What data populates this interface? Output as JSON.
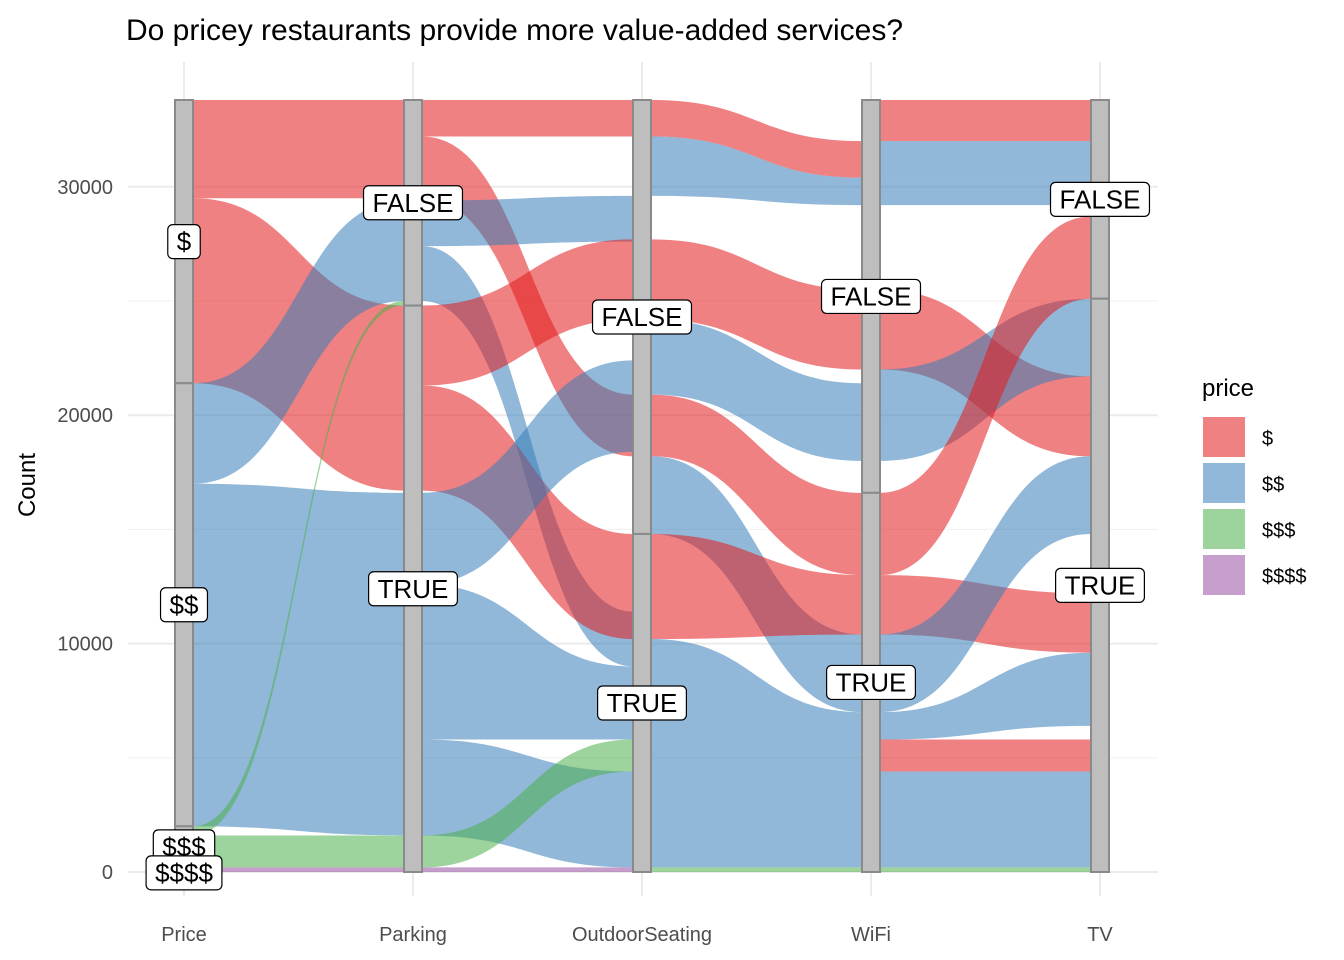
{
  "chart_data": {
    "type": "alluvial",
    "title": "Do pricey restaurants provide more value-added services?",
    "xlabel": "",
    "ylabel": "Count",
    "ylim": [
      0,
      33800
    ],
    "y_ticks": [
      0,
      10000,
      20000,
      30000
    ],
    "axes": [
      "Price",
      "Parking",
      "OutdoorSeating",
      "WiFi",
      "TV"
    ],
    "legend": {
      "title": "price",
      "position": "right",
      "entries": [
        {
          "label": "$",
          "color": "#E41A1C"
        },
        {
          "label": "$$",
          "color": "#377EB8"
        },
        {
          "label": "$$$",
          "color": "#4DAF4A"
        },
        {
          "label": "$$$$",
          "color": "#984EA3"
        }
      ]
    },
    "strata": [
      {
        "axis": "Price",
        "label": "$",
        "from": 21400,
        "to": 33800
      },
      {
        "axis": "Price",
        "label": "$$",
        "from": 2000,
        "to": 21400
      },
      {
        "axis": "Price",
        "label": "$$$",
        "from": 200,
        "to": 2000
      },
      {
        "axis": "Price",
        "label": "$$$$",
        "from": 0,
        "to": 200
      },
      {
        "axis": "Parking",
        "label": "FALSE",
        "from": 24800,
        "to": 33800
      },
      {
        "axis": "Parking",
        "label": "TRUE",
        "from": 0,
        "to": 24800
      },
      {
        "axis": "OutdoorSeating",
        "label": "FALSE",
        "from": 14800,
        "to": 33800
      },
      {
        "axis": "OutdoorSeating",
        "label": "TRUE",
        "from": 0,
        "to": 14800
      },
      {
        "axis": "WiFi",
        "label": "FALSE",
        "from": 16600,
        "to": 33800
      },
      {
        "axis": "WiFi",
        "label": "TRUE",
        "from": 0,
        "to": 16600
      },
      {
        "axis": "TV",
        "label": "FALSE",
        "from": 25100,
        "to": 33800
      },
      {
        "axis": "TV",
        "label": "TRUE",
        "from": 0,
        "to": 25100
      }
    ],
    "flows": [
      {
        "price": "$",
        "from_axis": "Price",
        "to_axis": "Parking",
        "from": [
          29500,
          33800
        ],
        "to": [
          29500,
          33800
        ]
      },
      {
        "price": "$",
        "from_axis": "Price",
        "to_axis": "Parking",
        "from": [
          21400,
          29500
        ],
        "to": [
          16700,
          24800
        ]
      },
      {
        "price": "$$",
        "from_axis": "Price",
        "to_axis": "Parking",
        "from": [
          17000,
          21400
        ],
        "to": [
          25000,
          29400
        ]
      },
      {
        "price": "$$",
        "from_axis": "Price",
        "to_axis": "Parking",
        "from": [
          2000,
          17000
        ],
        "to": [
          1600,
          16600
        ]
      },
      {
        "price": "$$$",
        "from_axis": "Price",
        "to_axis": "Parking",
        "from": [
          1600,
          2000
        ],
        "to": [
          24800,
          25000
        ]
      },
      {
        "price": "$$$",
        "from_axis": "Price",
        "to_axis": "Parking",
        "from": [
          200,
          1600
        ],
        "to": [
          200,
          1600
        ]
      },
      {
        "price": "$$$$",
        "from_axis": "Price",
        "to_axis": "Parking",
        "from": [
          0,
          200
        ],
        "to": [
          0,
          200
        ]
      },
      {
        "price": "$",
        "from_axis": "Parking",
        "to_axis": "OutdoorSeating",
        "from": [
          32200,
          33800
        ],
        "to": [
          32200,
          33800
        ]
      },
      {
        "price": "$",
        "from_axis": "Parking",
        "to_axis": "OutdoorSeating",
        "from": [
          29500,
          32200
        ],
        "to": [
          18200,
          20900
        ]
      },
      {
        "price": "$$",
        "from_axis": "Parking",
        "to_axis": "OutdoorSeating",
        "from": [
          27400,
          29400
        ],
        "to": [
          27600,
          29600
        ]
      },
      {
        "price": "$$",
        "from_axis": "Parking",
        "to_axis": "OutdoorSeating",
        "from": [
          25000,
          27400
        ],
        "to": [
          9000,
          11400
        ]
      },
      {
        "price": "$",
        "from_axis": "Parking",
        "to_axis": "OutdoorSeating",
        "from": [
          21300,
          24800
        ],
        "to": [
          24200,
          27700
        ]
      },
      {
        "price": "$",
        "from_axis": "Parking",
        "to_axis": "OutdoorSeating",
        "from": [
          16700,
          21300
        ],
        "to": [
          10200,
          14800
        ]
      },
      {
        "price": "$$",
        "from_axis": "Parking",
        "to_axis": "OutdoorSeating",
        "from": [
          12600,
          16600
        ],
        "to": [
          18400,
          22400
        ]
      },
      {
        "price": "$$",
        "from_axis": "Parking",
        "to_axis": "OutdoorSeating",
        "from": [
          5800,
          12600
        ],
        "to": [
          5800,
          9000
        ]
      },
      {
        "price": "$$",
        "from_axis": "Parking",
        "to_axis": "OutdoorSeating",
        "from": [
          1600,
          5800
        ],
        "to": [
          200,
          4400
        ]
      },
      {
        "price": "$$$",
        "from_axis": "Parking",
        "to_axis": "OutdoorSeating",
        "from": [
          200,
          1600
        ],
        "to": [
          4400,
          5800
        ]
      },
      {
        "price": "$$$$",
        "from_axis": "Parking",
        "to_axis": "OutdoorSeating",
        "from": [
          0,
          200
        ],
        "to": [
          0,
          200
        ]
      },
      {
        "price": "$",
        "from_axis": "OutdoorSeating",
        "to_axis": "WiFi",
        "from": [
          32200,
          33800
        ],
        "to": [
          30400,
          32000
        ]
      },
      {
        "price": "$$",
        "from_axis": "OutdoorSeating",
        "to_axis": "WiFi",
        "from": [
          29600,
          32200
        ],
        "to": [
          29200,
          30400
        ]
      },
      {
        "price": "$",
        "from_axis": "OutdoorSeating",
        "to_axis": "WiFi",
        "from": [
          24200,
          27700
        ],
        "to": [
          22000,
          25500
        ]
      },
      {
        "price": "$$",
        "from_axis": "OutdoorSeating",
        "to_axis": "WiFi",
        "from": [
          20900,
          24200
        ],
        "to": [
          18000,
          21400
        ]
      },
      {
        "price": "$",
        "from_axis": "OutdoorSeating",
        "to_axis": "WiFi",
        "from": [
          18200,
          20900
        ],
        "to": [
          13000,
          16600
        ]
      },
      {
        "price": "$$",
        "from_axis": "OutdoorSeating",
        "to_axis": "WiFi",
        "from": [
          14800,
          18200
        ],
        "to": [
          7000,
          10400
        ]
      },
      {
        "price": "$",
        "from_axis": "OutdoorSeating",
        "to_axis": "WiFi",
        "from": [
          10200,
          14800
        ],
        "to": [
          10400,
          13000
        ]
      },
      {
        "price": "$$",
        "from_axis": "OutdoorSeating",
        "to_axis": "WiFi",
        "from": [
          5800,
          10200
        ],
        "to": [
          5800,
          7000
        ]
      },
      {
        "price": "$$",
        "from_axis": "OutdoorSeating",
        "to_axis": "WiFi",
        "from": [
          4400,
          5800
        ],
        "to": [
          4400,
          5800
        ]
      },
      {
        "price": "$$",
        "from_axis": "OutdoorSeating",
        "to_axis": "WiFi",
        "from": [
          200,
          4400
        ],
        "to": [
          200,
          4400
        ]
      },
      {
        "price": "$$$",
        "from_axis": "OutdoorSeating",
        "to_axis": "WiFi",
        "from": [
          0,
          200
        ],
        "to": [
          0,
          200
        ]
      },
      {
        "price": "$",
        "from_axis": "WiFi",
        "to_axis": "TV",
        "from": [
          32000,
          33800
        ],
        "to": [
          32000,
          33800
        ]
      },
      {
        "price": "$$",
        "from_axis": "WiFi",
        "to_axis": "TV",
        "from": [
          30400,
          32000
        ],
        "to": [
          30400,
          32000
        ]
      },
      {
        "price": "$$",
        "from_axis": "WiFi",
        "to_axis": "TV",
        "from": [
          29200,
          30400
        ],
        "to": [
          29200,
          30400
        ]
      },
      {
        "price": "$",
        "from_axis": "WiFi",
        "to_axis": "TV",
        "from": [
          22000,
          25500
        ],
        "to": [
          18200,
          21700
        ]
      },
      {
        "price": "$$",
        "from_axis": "WiFi",
        "to_axis": "TV",
        "from": [
          18000,
          22000
        ],
        "to": [
          21700,
          25100
        ]
      },
      {
        "price": "$",
        "from_axis": "WiFi",
        "to_axis": "TV",
        "from": [
          13000,
          16600
        ],
        "to": [
          25100,
          28700
        ]
      },
      {
        "price": "$",
        "from_axis": "WiFi",
        "to_axis": "TV",
        "from": [
          10400,
          13000
        ],
        "to": [
          9600,
          12200
        ]
      },
      {
        "price": "$$",
        "from_axis": "WiFi",
        "to_axis": "TV",
        "from": [
          7000,
          10400
        ],
        "to": [
          14800,
          18200
        ]
      },
      {
        "price": "$$",
        "from_axis": "WiFi",
        "to_axis": "TV",
        "from": [
          5800,
          7000
        ],
        "to": [
          6400,
          9600
        ]
      },
      {
        "price": "$",
        "from_axis": "WiFi",
        "to_axis": "TV",
        "from": [
          4400,
          5800
        ],
        "to": [
          4400,
          5800
        ]
      },
      {
        "price": "$$",
        "from_axis": "WiFi",
        "to_axis": "TV",
        "from": [
          200,
          4400
        ],
        "to": [
          200,
          4400
        ]
      },
      {
        "price": "$$$",
        "from_axis": "WiFi",
        "to_axis": "TV",
        "from": [
          0,
          200
        ],
        "to": [
          0,
          200
        ]
      }
    ]
  }
}
